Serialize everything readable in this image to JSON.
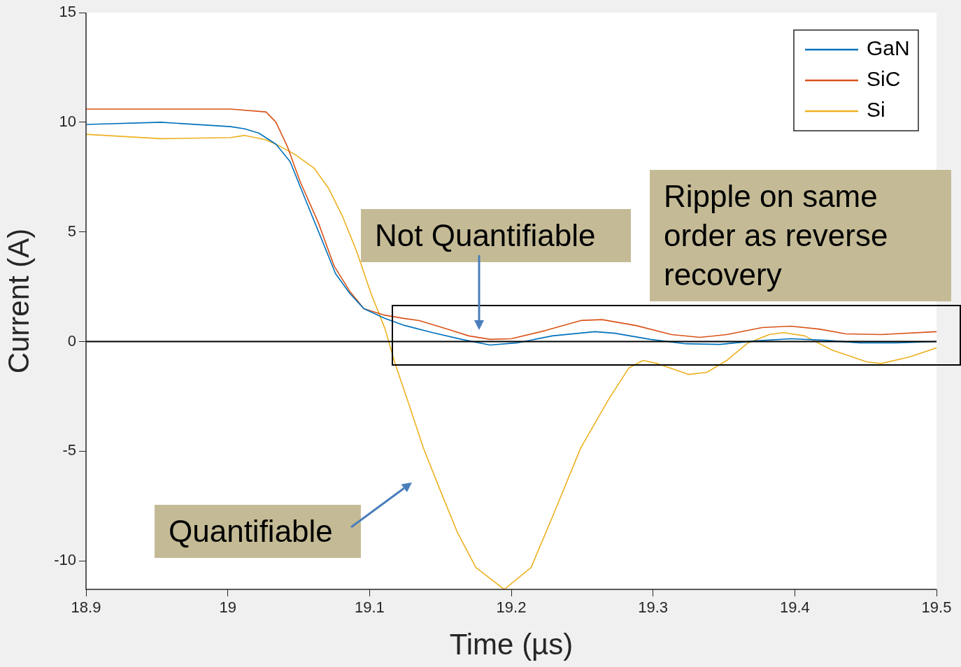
{
  "chart_data": {
    "type": "line",
    "xlabel": "Time (µs)",
    "ylabel": "Current (A)",
    "xlim": [
      18.9,
      19.5
    ],
    "xticks": [
      18.9,
      19,
      19.1,
      19.2,
      19.3,
      19.4,
      19.5
    ],
    "ylim": [
      -11.3,
      15
    ],
    "yticks": [
      -10,
      -5,
      0,
      5,
      10,
      15
    ],
    "grid": false,
    "legend": "top right",
    "marker": "none",
    "line_style": "solid",
    "ref_lines": [
      {
        "axis": "y",
        "value": 0,
        "color": "#000000"
      }
    ],
    "annotations": [
      "Not Quantifiable",
      "Quantifiable",
      "Ripple on same order as reverse recovery"
    ],
    "series": [
      {
        "name": "GaN",
        "color": "#0072bd",
        "x": [
          18.9,
          18.953,
          19.002,
          19.012,
          19.022,
          19.034,
          19.044,
          19.054,
          19.066,
          19.076,
          19.086,
          19.096,
          19.111,
          19.125,
          19.145,
          19.165,
          19.185,
          19.204,
          19.229,
          19.259,
          19.273,
          19.298,
          19.323,
          19.347,
          19.372,
          19.397,
          19.421,
          19.446,
          19.471,
          19.5
        ],
        "values": [
          9.9,
          10.0,
          9.8,
          9.7,
          9.5,
          9.0,
          8.2,
          6.6,
          4.7,
          3.1,
          2.2,
          1.5,
          1.05,
          0.73,
          0.4,
          0.1,
          -0.16,
          -0.06,
          0.26,
          0.45,
          0.38,
          0.1,
          -0.1,
          -0.13,
          0.03,
          0.13,
          0.06,
          -0.06,
          -0.06,
          0
        ]
      },
      {
        "name": "SiC",
        "color": "#d95319",
        "x": [
          18.9,
          19.002,
          19.027,
          19.034,
          19.042,
          19.051,
          19.064,
          19.075,
          19.086,
          19.096,
          19.111,
          19.125,
          19.135,
          19.155,
          19.17,
          19.185,
          19.2,
          19.224,
          19.249,
          19.264,
          19.288,
          19.313,
          19.333,
          19.352,
          19.377,
          19.397,
          19.417,
          19.436,
          19.461,
          19.5
        ],
        "values": [
          10.6,
          10.6,
          10.47,
          10.0,
          8.9,
          7.3,
          5.4,
          3.45,
          2.3,
          1.5,
          1.2,
          1.05,
          0.96,
          0.57,
          0.26,
          0.1,
          0.13,
          0.5,
          0.96,
          1.0,
          0.73,
          0.32,
          0.19,
          0.32,
          0.64,
          0.7,
          0.57,
          0.35,
          0.32,
          0.45
        ]
      },
      {
        "name": "Si",
        "color": "#edb120",
        "x": [
          18.9,
          18.953,
          19.002,
          19.012,
          19.027,
          19.037,
          19.047,
          19.061,
          19.071,
          19.081,
          19.091,
          19.101,
          19.111,
          19.118,
          19.128,
          19.138,
          19.15,
          19.162,
          19.175,
          19.195,
          19.214,
          19.229,
          19.249,
          19.269,
          19.283,
          19.293,
          19.303,
          19.325,
          19.338,
          19.352,
          19.367,
          19.382,
          19.392,
          19.407,
          19.426,
          19.451,
          19.461,
          19.481,
          19.5
        ],
        "values": [
          9.45,
          9.25,
          9.3,
          9.4,
          9.2,
          8.9,
          8.55,
          7.9,
          7.0,
          5.7,
          4.1,
          2.2,
          0.57,
          -1.0,
          -2.9,
          -4.85,
          -6.8,
          -8.7,
          -10.3,
          -11.3,
          -10.3,
          -8.0,
          -4.85,
          -2.6,
          -1.2,
          -0.86,
          -1.0,
          -1.5,
          -1.4,
          -0.86,
          -0.06,
          0.32,
          0.41,
          0.26,
          -0.38,
          -0.93,
          -1.0,
          -0.7,
          -0.29
        ]
      }
    ]
  }
}
